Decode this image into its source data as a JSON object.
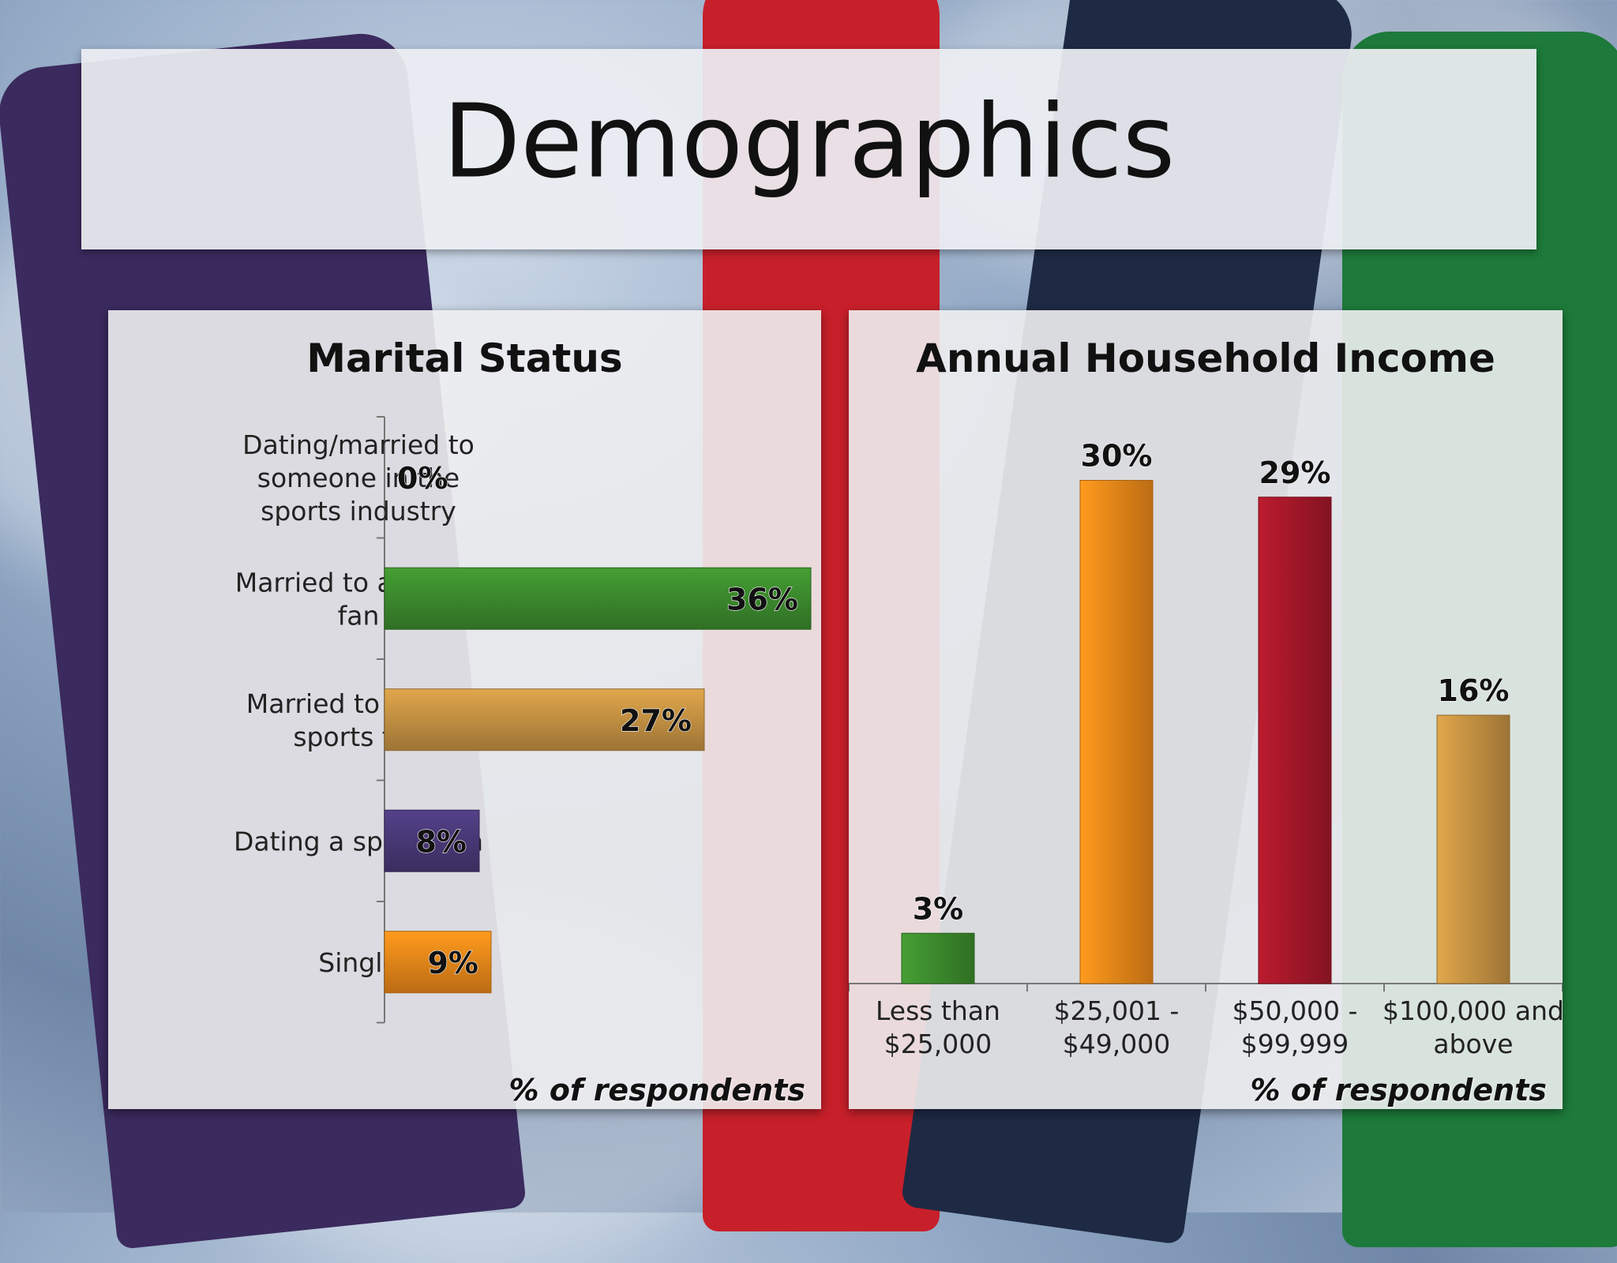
{
  "slide": {
    "title": "Demographics"
  },
  "colors": {
    "green": "#3e8e2e",
    "orange": "#f08a1a",
    "tan": "#c99544",
    "purple": "#4b3a7a",
    "crimson": "#a8182a"
  },
  "chart_data": [
    {
      "type": "bar",
      "orientation": "horizontal",
      "title": "Marital Status",
      "footnote": "% of respondents",
      "categories": [
        "Dating/married to someone in the sports industry",
        "Married to a sports fan",
        "Married to a non-sports fan",
        "Dating a sports fan",
        "Single"
      ],
      "category_lines": [
        [
          "Dating/married to",
          "someone in the",
          "sports industry"
        ],
        [
          "Married to a sports",
          "fan"
        ],
        [
          "Married to a non-",
          "sports fan"
        ],
        [
          "Dating a sports fan"
        ],
        [
          "Single"
        ]
      ],
      "values": [
        0,
        36,
        27,
        8,
        9
      ],
      "labels": [
        "0%",
        "36%",
        "27%",
        "8%",
        "9%"
      ],
      "bar_colors": [
        "#3e8e2e",
        "#3e8e2e",
        "#c99544",
        "#4b3a7a",
        "#f08a1a"
      ],
      "xlim": [
        0,
        40
      ],
      "grid": false
    },
    {
      "type": "bar",
      "orientation": "vertical",
      "title": "Annual Household Income",
      "footnote": "% of respondents",
      "categories": [
        "Less than $25,000",
        "$25,001 - $49,000",
        "$50,000 - $99,999",
        "$100,000 and above"
      ],
      "category_lines": [
        [
          "Less than",
          "$25,000"
        ],
        [
          "$25,001 -",
          "$49,000"
        ],
        [
          "$50,000 -",
          "$99,999"
        ],
        [
          "$100,000 and",
          "above"
        ]
      ],
      "values": [
        3,
        30,
        29,
        16
      ],
      "labels": [
        "3%",
        "30%",
        "29%",
        "16%"
      ],
      "bar_colors": [
        "#3e8e2e",
        "#f08a1a",
        "#a8182a",
        "#c99544"
      ],
      "ylim": [
        0,
        32
      ],
      "grid": false
    }
  ]
}
